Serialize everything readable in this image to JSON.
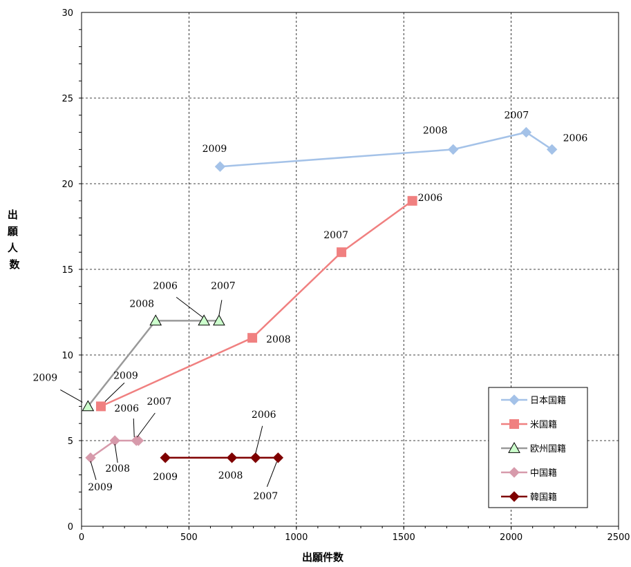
{
  "chart_data": {
    "type": "line",
    "title": "",
    "xlabel": "出願件数",
    "ylabel": "出願人数",
    "xlim": [
      0,
      2500
    ],
    "ylim": [
      0,
      30
    ],
    "xticks": [
      0,
      500,
      1000,
      1500,
      2000,
      2500
    ],
    "yticks": [
      0,
      5,
      10,
      15,
      20,
      25,
      30
    ],
    "grid": "dashed",
    "legend_position": "bottom-right",
    "series": [
      {
        "name": "日本国籍",
        "color": "#a4c2e8",
        "marker": "diamond",
        "points": [
          {
            "x": 2190,
            "y": 22,
            "year": "2006"
          },
          {
            "x": 2070,
            "y": 23,
            "year": "2007"
          },
          {
            "x": 1730,
            "y": 22,
            "year": "2008"
          },
          {
            "x": 645,
            "y": 21,
            "year": "2009"
          }
        ]
      },
      {
        "name": "米国籍",
        "color": "#f08080",
        "marker": "square",
        "points": [
          {
            "x": 1540,
            "y": 19,
            "year": "2006"
          },
          {
            "x": 1210,
            "y": 16,
            "year": "2007"
          },
          {
            "x": 795,
            "y": 11,
            "year": "2008"
          },
          {
            "x": 90,
            "y": 7,
            "year": "2009"
          }
        ]
      },
      {
        "name": "欧州国籍",
        "color": "#999999",
        "marker": "triangle",
        "points": [
          {
            "x": 570,
            "y": 12,
            "year": "2006"
          },
          {
            "x": 640,
            "y": 12,
            "year": "2007"
          },
          {
            "x": 345,
            "y": 12,
            "year": "2008"
          },
          {
            "x": 30,
            "y": 7,
            "year": "2009"
          }
        ]
      },
      {
        "name": "中国籍",
        "color": "#d79aab",
        "marker": "diamond",
        "points": [
          {
            "x": 255,
            "y": 5,
            "year": "2006"
          },
          {
            "x": 265,
            "y": 5,
            "year": "2007"
          },
          {
            "x": 155,
            "y": 5,
            "year": "2008"
          },
          {
            "x": 42,
            "y": 4,
            "year": "2009"
          }
        ]
      },
      {
        "name": "韓国籍",
        "color": "#7f0000",
        "marker": "diamond",
        "points": [
          {
            "x": 810,
            "y": 4,
            "year": "2006"
          },
          {
            "x": 915,
            "y": 4,
            "year": "2007"
          },
          {
            "x": 700,
            "y": 4,
            "year": "2008"
          },
          {
            "x": 390,
            "y": 4,
            "year": "2009"
          }
        ]
      }
    ]
  }
}
